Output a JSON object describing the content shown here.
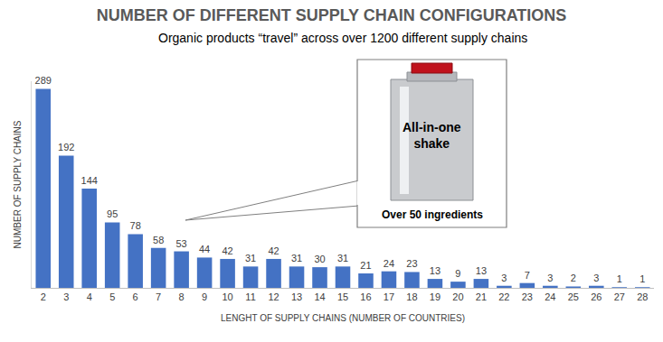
{
  "chart_data": {
    "type": "bar",
    "title": "NUMBER OF DIFFERENT SUPPLY CHAIN CONFIGURATIONS",
    "subtitle": "Organic products “travel” across over 1200 different supply chains",
    "x_label": "LENGHT OF SUPPLY CHAINS (NUMBER OF COUNTRIES)",
    "y_label": "NUMBER OF SUPPLY CHAINS",
    "categories": [
      "2",
      "3",
      "4",
      "5",
      "6",
      "7",
      "8",
      "9",
      "10",
      "11",
      "12",
      "13",
      "14",
      "15",
      "16",
      "17",
      "18",
      "19",
      "20",
      "21",
      "22",
      "23",
      "24",
      "25",
      "26",
      "27",
      "28"
    ],
    "values": [
      289,
      192,
      144,
      95,
      78,
      58,
      53,
      44,
      42,
      31,
      42,
      31,
      30,
      31,
      21,
      24,
      23,
      13,
      9,
      13,
      3,
      7,
      3,
      2,
      3,
      1,
      1
    ],
    "color": "#4472c4",
    "ylim": [
      0,
      300
    ],
    "grid": false,
    "data_labels": true,
    "tick_labels": "x",
    "annotations": [
      "All-in-one shake",
      "Over 50 ingredients"
    ]
  }
}
